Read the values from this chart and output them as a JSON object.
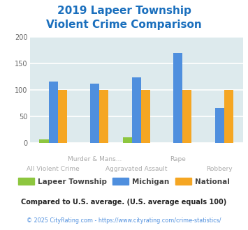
{
  "title_line1": "2019 Lapeer Township",
  "title_line2": "Violent Crime Comparison",
  "title_color": "#1a6fbd",
  "categories": [
    "All Violent Crime",
    "Murder & Mans...",
    "Aggravated Assault",
    "Rape",
    "Robbery"
  ],
  "row1_labels": [
    "",
    "Murder & Mans...",
    "",
    "Rape",
    ""
  ],
  "row2_labels": [
    "All Violent Crime",
    "",
    "Aggravated Assault",
    "",
    "Robbery"
  ],
  "lapeer": [
    6,
    0,
    10,
    0,
    0
  ],
  "michigan": [
    116,
    112,
    123,
    170,
    66
  ],
  "national": [
    100,
    100,
    100,
    100,
    100
  ],
  "lapeer_color": "#8dc63f",
  "michigan_color": "#4f8fde",
  "national_color": "#f5a623",
  "bar_bg_color": "#ddeaed",
  "ylim": [
    0,
    200
  ],
  "yticks": [
    0,
    50,
    100,
    150,
    200
  ],
  "legend_labels": [
    "Lapeer Township",
    "Michigan",
    "National"
  ],
  "footnote1": "Compared to U.S. average. (U.S. average equals 100)",
  "footnote2": "© 2025 CityRating.com - https://www.cityrating.com/crime-statistics/",
  "footnote1_color": "#222222",
  "footnote2_color": "#4f8fde",
  "tick_color": "#aaaaaa",
  "grid_color": "#ffffff",
  "bar_width": 0.22
}
